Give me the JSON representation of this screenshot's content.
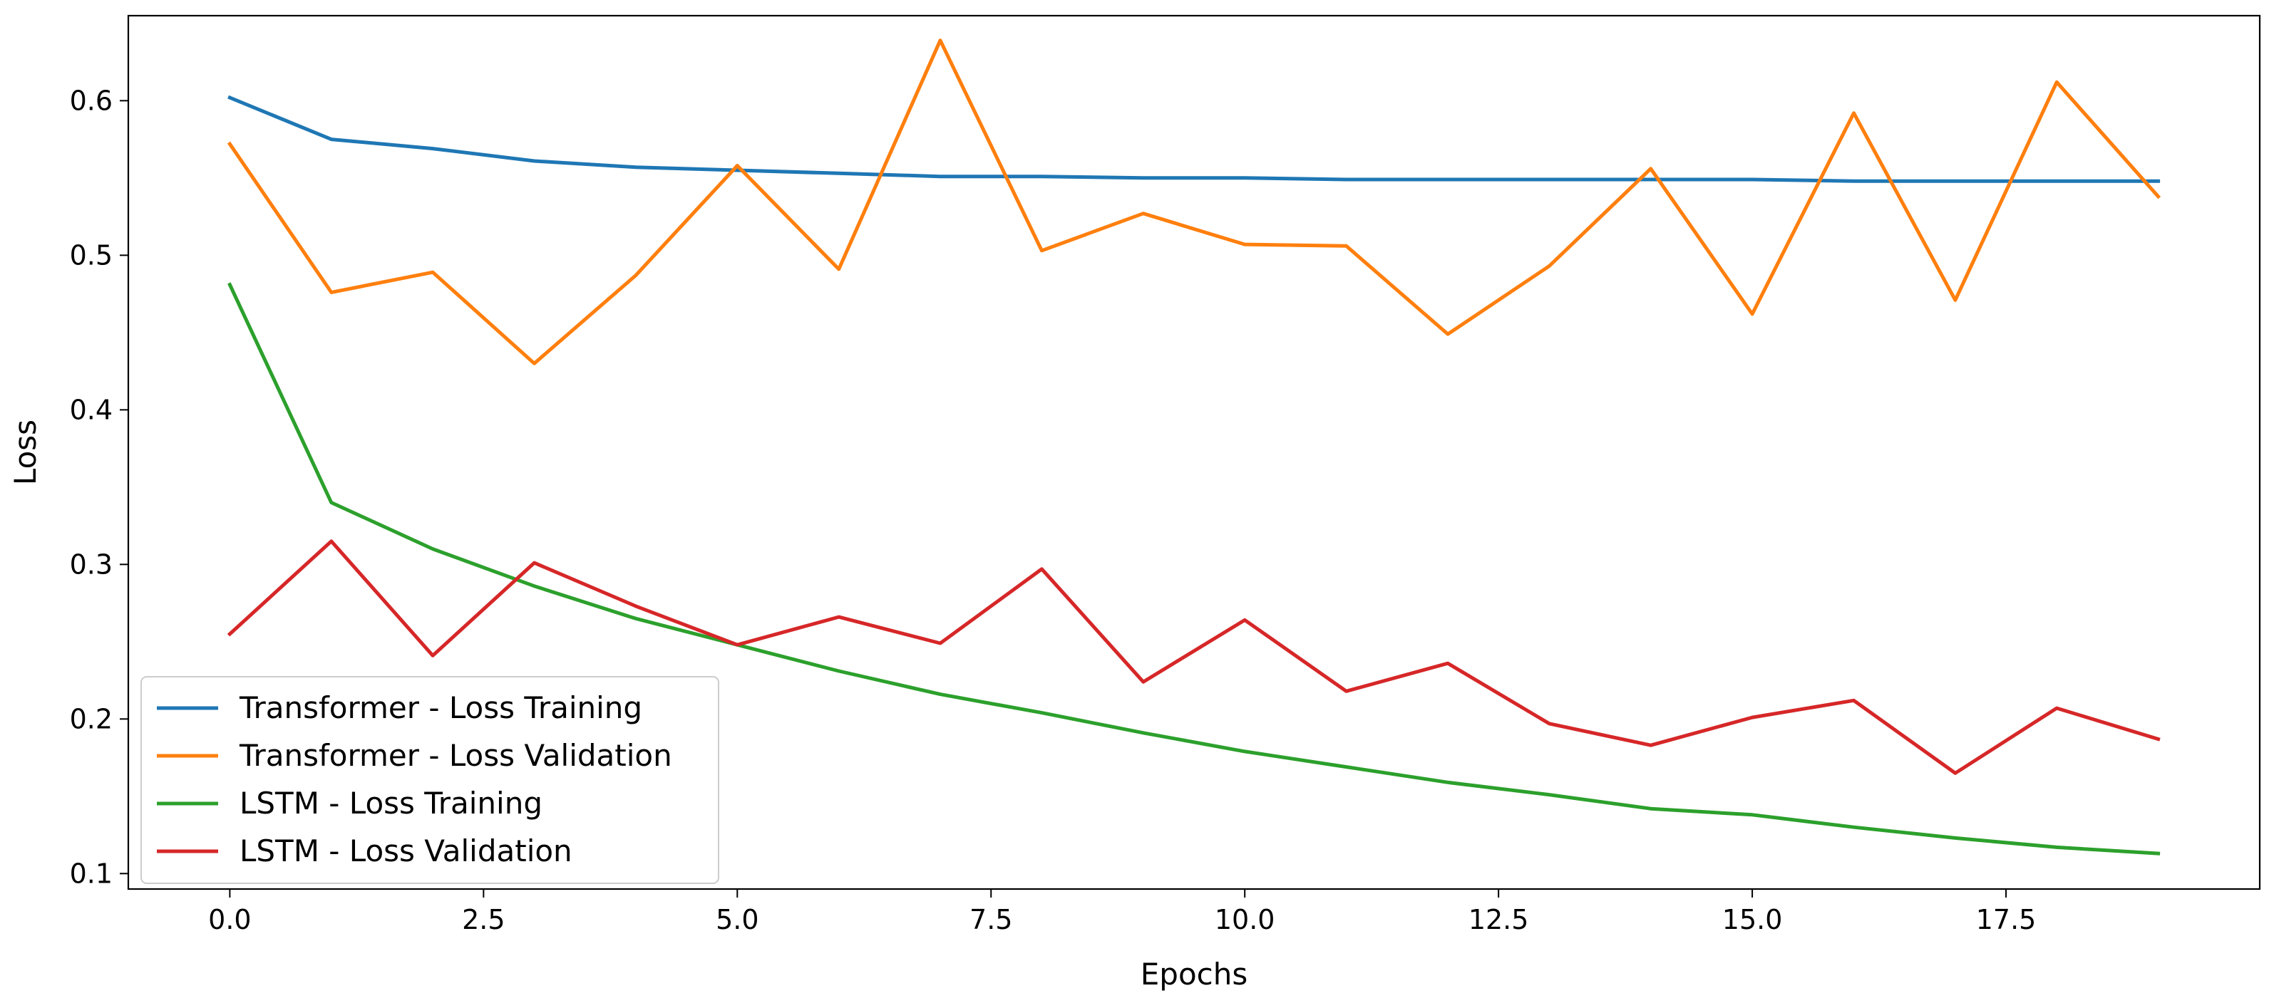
{
  "chart_data": {
    "type": "line",
    "title": "",
    "xlabel": "Epochs",
    "ylabel": "Loss",
    "xlim": [
      -1.0,
      20.0
    ],
    "ylim": [
      0.09,
      0.655
    ],
    "grid": false,
    "legend_placement": "lower-left",
    "xticks": [
      0.0,
      2.5,
      5.0,
      7.5,
      10.0,
      12.5,
      15.0,
      17.5
    ],
    "xtick_labels": [
      "0.0",
      "2.5",
      "5.0",
      "7.5",
      "10.0",
      "12.5",
      "15.0",
      "17.5"
    ],
    "yticks": [
      0.1,
      0.2,
      0.3,
      0.4,
      0.5,
      0.6
    ],
    "ytick_labels": [
      "0.1",
      "0.2",
      "0.3",
      "0.4",
      "0.5",
      "0.6"
    ],
    "x": [
      0,
      1,
      2,
      3,
      4,
      5,
      6,
      7,
      8,
      9,
      10,
      11,
      12,
      13,
      14,
      15,
      16,
      17,
      18,
      19
    ],
    "series": [
      {
        "name": "Transformer - Loss Training",
        "color": "#1f77b4",
        "values": [
          0.602,
          0.575,
          0.569,
          0.561,
          0.557,
          0.555,
          0.553,
          0.551,
          0.551,
          0.55,
          0.55,
          0.549,
          0.549,
          0.549,
          0.549,
          0.549,
          0.548,
          0.548,
          0.548,
          0.548
        ]
      },
      {
        "name": "Transformer - Loss Validation",
        "color": "#ff7f0e",
        "values": [
          0.572,
          0.476,
          0.489,
          0.43,
          0.487,
          0.558,
          0.491,
          0.639,
          0.503,
          0.527,
          0.507,
          0.506,
          0.449,
          0.493,
          0.556,
          0.462,
          0.592,
          0.471,
          0.612,
          0.538
        ]
      },
      {
        "name": "LSTM - Loss Training",
        "color": "#2ca02c",
        "values": [
          0.481,
          0.34,
          0.31,
          0.286,
          0.265,
          0.248,
          0.231,
          0.216,
          0.204,
          0.191,
          0.179,
          0.169,
          0.159,
          0.151,
          0.142,
          0.138,
          0.13,
          0.123,
          0.117,
          0.113
        ]
      },
      {
        "name": "LSTM - Loss Validation",
        "color": "#d62728",
        "values": [
          0.255,
          0.315,
          0.241,
          0.301,
          0.273,
          0.248,
          0.266,
          0.249,
          0.297,
          0.224,
          0.264,
          0.218,
          0.236,
          0.197,
          0.183,
          0.201,
          0.212,
          0.165,
          0.207,
          0.187
        ]
      }
    ]
  }
}
